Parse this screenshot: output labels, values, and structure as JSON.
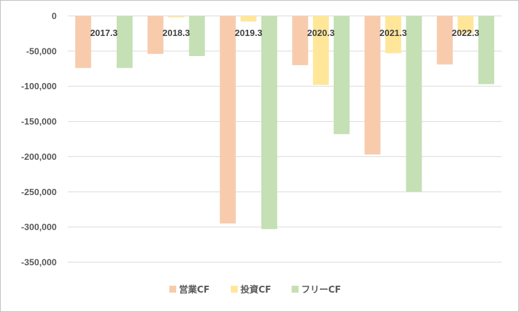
{
  "chart_data": {
    "type": "bar",
    "title": "",
    "xlabel": "",
    "ylabel": "",
    "categories": [
      "2017.3",
      "2018.3",
      "2019.3",
      "2020.3",
      "2021.3",
      "2022.3"
    ],
    "series": [
      {
        "name": "営業CF",
        "color": "#f8cbad",
        "values": [
          -74000,
          -54000,
          -295000,
          -70000,
          -197000,
          -69000
        ]
      },
      {
        "name": "投資CF",
        "color": "#ffe699",
        "values": [
          0,
          -2000,
          -8000,
          -98000,
          -53000,
          -25000
        ]
      },
      {
        "name": "フリーCF",
        "color": "#c5e0b4",
        "values": [
          -74000,
          -57000,
          -303000,
          -168000,
          -250000,
          -97000
        ]
      }
    ],
    "ylim": [
      -350000,
      0
    ],
    "yticks": [
      0,
      -50000,
      -100000,
      -150000,
      -200000,
      -250000,
      -300000,
      -350000
    ],
    "ytick_labels": [
      "0",
      "-50,000",
      "-100,000",
      "-150,000",
      "-200,000",
      "-250,000",
      "-300,000",
      "-350,000"
    ],
    "grid": true,
    "legend_position": "bottom"
  }
}
